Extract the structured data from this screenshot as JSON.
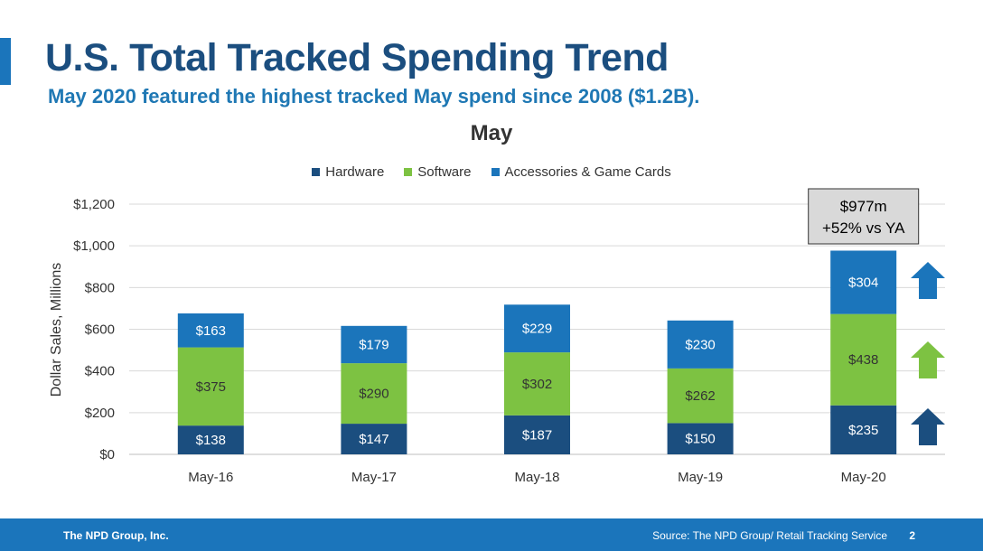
{
  "slide": {
    "title": "U.S. Total Tracked Spending Trend",
    "subtitle": "May 2020 featured the highest tracked May spend since 2008 ($1.2B).",
    "footer_org": "The NPD Group, Inc.",
    "footer_source": "Source: The NPD Group/ Retail Tracking Service",
    "page_number": "2"
  },
  "colors": {
    "title": "#1b4e7f",
    "subtitle": "#1f78b4",
    "accent": "#1b75bb",
    "hardware": "#1b4e7f",
    "software": "#7dc242",
    "accessories": "#1b75bb",
    "footer": "#1b75bb"
  },
  "callout": {
    "line1": "$977m",
    "line2": "+52% vs YA"
  },
  "arrows": [
    {
      "series": "Accessories & Game Cards",
      "icon": "up-arrow-icon"
    },
    {
      "series": "Software",
      "icon": "up-arrow-icon"
    },
    {
      "series": "Hardware",
      "icon": "up-arrow-icon"
    }
  ],
  "chart_data": {
    "type": "bar",
    "stacked": true,
    "title": "May",
    "xlabel": "",
    "ylabel": "Dollar Sales, Millions",
    "ylim": [
      0,
      1200
    ],
    "yticks": [
      0,
      200,
      400,
      600,
      800,
      1000,
      1200
    ],
    "ytick_labels": [
      "$0",
      "$200",
      "$400",
      "$600",
      "$800",
      "$1,000",
      "$1,200"
    ],
    "grid": true,
    "legend_position": "top-center",
    "categories": [
      "May-16",
      "May-17",
      "May-18",
      "May-19",
      "May-20"
    ],
    "series": [
      {
        "name": "Hardware",
        "values": [
          138,
          147,
          187,
          150,
          235
        ],
        "labels": [
          "$138",
          "$147",
          "$187",
          "$150",
          "$235"
        ]
      },
      {
        "name": "Software",
        "values": [
          375,
          290,
          302,
          262,
          438
        ],
        "labels": [
          "$375",
          "$290",
          "$302",
          "$262",
          "$438"
        ]
      },
      {
        "name": "Accessories & Game Cards",
        "values": [
          163,
          179,
          229,
          230,
          304
        ],
        "labels": [
          "$163",
          "$179",
          "$229",
          "$230",
          "$304"
        ]
      }
    ]
  }
}
